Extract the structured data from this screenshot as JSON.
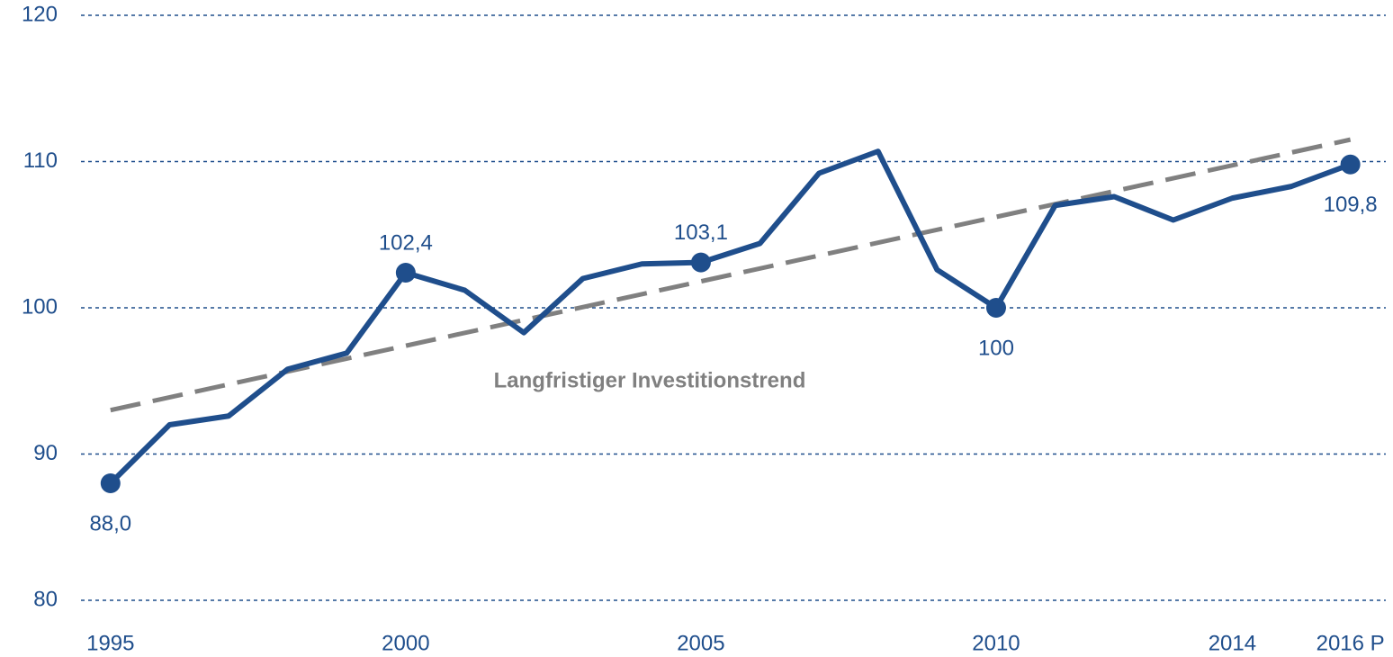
{
  "chart_data": {
    "type": "line",
    "x": [
      1995,
      1996,
      1997,
      1998,
      1999,
      2000,
      2001,
      2002,
      2003,
      2004,
      2005,
      2006,
      2007,
      2008,
      2009,
      2010,
      2011,
      2012,
      2013,
      2014,
      2015,
      2016
    ],
    "series": [
      {
        "color": "#1f4e8c",
        "values": [
          88.0,
          92.0,
          92.6,
          95.8,
          96.9,
          102.4,
          101.2,
          98.3,
          102.0,
          103.0,
          103.1,
          104.4,
          109.2,
          110.7,
          102.6,
          100,
          107.0,
          107.6,
          106.0,
          107.5,
          108.3,
          109.8
        ],
        "value_labels": [
          "88,0",
          null,
          null,
          null,
          null,
          "102,4",
          null,
          null,
          null,
          null,
          "103,1",
          null,
          null,
          null,
          null,
          "100",
          null,
          null,
          null,
          null,
          null,
          "109,8"
        ]
      }
    ],
    "trend": {
      "label": "Langfristiger Investitionstrend",
      "x": [
        1995,
        2016
      ],
      "values": [
        93.0,
        111.5
      ],
      "color": "#808080"
    },
    "xlim": [
      1994.5,
      2016.6
    ],
    "xticks": [
      1995,
      2000,
      2005,
      2010,
      2014,
      {
        "value": 2016,
        "label": "2016 P"
      }
    ],
    "ylim": [
      80,
      120
    ],
    "yticks": [
      80,
      90,
      100,
      110,
      120
    ],
    "grid": true
  }
}
